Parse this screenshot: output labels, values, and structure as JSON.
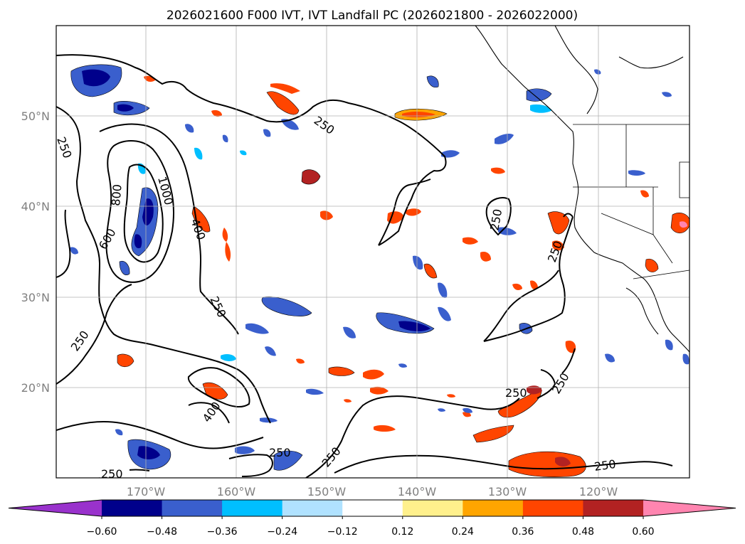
{
  "title": "2026021600 F000 IVT, IVT Landfall PC (2026021800 - 2026022000)",
  "map": {
    "lon_ticks": [
      "170°W",
      "160°W",
      "150°W",
      "140°W",
      "130°W",
      "120°W"
    ],
    "lat_ticks": [
      "50°N",
      "40°N",
      "30°N",
      "20°N"
    ],
    "grid": true,
    "contour_labels": [
      "250",
      "250",
      "250",
      "250",
      "250",
      "250",
      "250",
      "250",
      "250",
      "250",
      "250",
      "400",
      "400",
      "600",
      "800",
      "1000"
    ]
  },
  "colorbar": {
    "ticks": [
      "−0.60",
      "−0.48",
      "−0.36",
      "−0.24",
      "−0.12",
      "0.12",
      "0.24",
      "0.36",
      "0.48",
      "0.60"
    ],
    "colors": [
      "#9932cc",
      "#00008b",
      "#3a5fcd",
      "#00bfff",
      "#b0e2ff",
      "#ffffff",
      "#fff08c",
      "#ffa500",
      "#ff4500",
      "#b22222",
      "#ff85b0"
    ],
    "extend": "both"
  }
}
